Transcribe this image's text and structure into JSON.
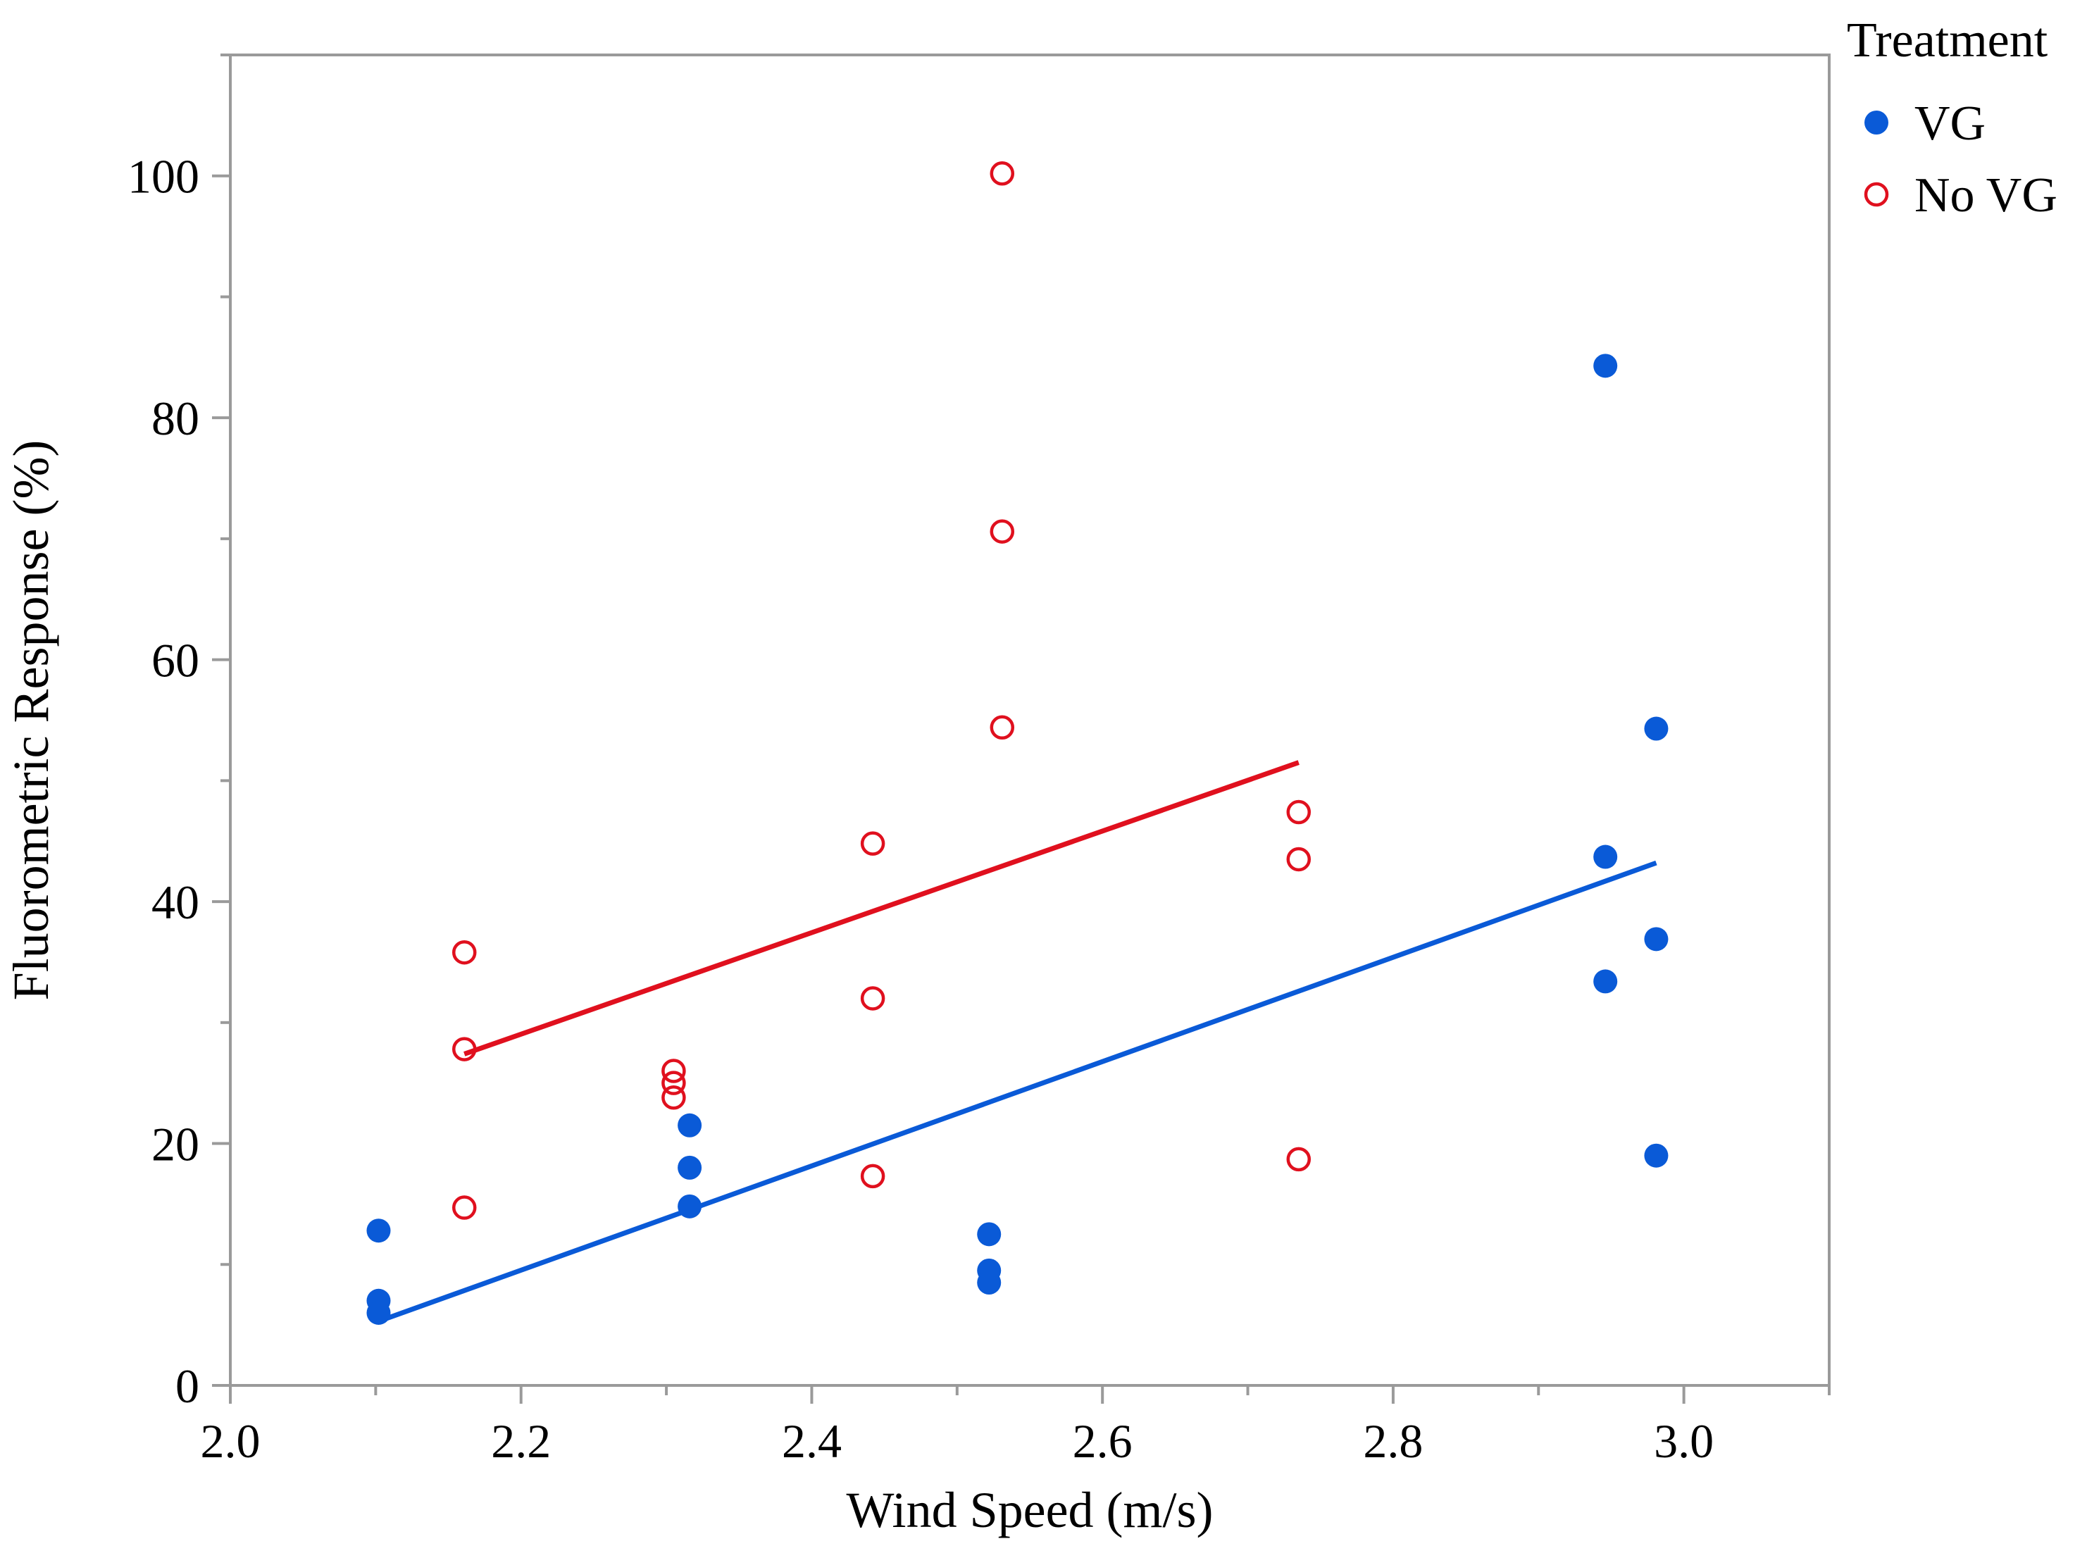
{
  "chart_data": {
    "type": "scatter",
    "title": "",
    "xlabel": "Wind Speed (m/s)",
    "ylabel": "Fluorometric Response (%)",
    "xlim": [
      2.0,
      3.1
    ],
    "ylim": [
      0,
      110
    ],
    "x_ticks": [
      2.0,
      2.2,
      2.4,
      2.6,
      2.8,
      3.0
    ],
    "x_tick_labels": [
      "2.0",
      "2.2",
      "2.4",
      "2.6",
      "2.8",
      "3.0"
    ],
    "y_ticks": [
      0,
      20,
      40,
      60,
      80,
      100
    ],
    "y_tick_labels": [
      "0",
      "20",
      "40",
      "60",
      "80",
      "100"
    ],
    "grid": false,
    "legend": {
      "title": "Treatment",
      "position": "top-right",
      "entries": [
        "VG",
        "No VG"
      ]
    },
    "series": [
      {
        "name": "VG",
        "marker": "filled-circle",
        "color": "#0a5ad7",
        "points": [
          [
            2.102,
            12.8
          ],
          [
            2.102,
            7.0
          ],
          [
            2.102,
            6.0
          ],
          [
            2.316,
            21.5
          ],
          [
            2.316,
            18.0
          ],
          [
            2.316,
            14.8
          ],
          [
            2.522,
            12.5
          ],
          [
            2.522,
            9.5
          ],
          [
            2.522,
            8.5
          ],
          [
            2.946,
            84.3
          ],
          [
            2.946,
            43.7
          ],
          [
            2.946,
            33.4
          ],
          [
            2.981,
            54.3
          ],
          [
            2.981,
            36.9
          ],
          [
            2.981,
            19.0
          ]
        ],
        "fit_line": {
          "x": [
            2.102,
            2.981
          ],
          "y": [
            5.3,
            43.2
          ]
        }
      },
      {
        "name": "No VG",
        "marker": "open-circle",
        "color": "#e0101e",
        "points": [
          [
            2.161,
            35.8
          ],
          [
            2.161,
            27.8
          ],
          [
            2.161,
            14.7
          ],
          [
            2.305,
            26.0
          ],
          [
            2.305,
            25.0
          ],
          [
            2.305,
            23.8
          ],
          [
            2.442,
            44.8
          ],
          [
            2.442,
            32.0
          ],
          [
            2.442,
            17.3
          ],
          [
            2.531,
            100.2
          ],
          [
            2.531,
            70.6
          ],
          [
            2.531,
            54.4
          ],
          [
            2.735,
            47.4
          ],
          [
            2.735,
            43.5
          ],
          [
            2.735,
            18.7
          ]
        ],
        "fit_line": {
          "x": [
            2.161,
            2.735
          ],
          "y": [
            27.4,
            51.5
          ]
        }
      }
    ]
  }
}
